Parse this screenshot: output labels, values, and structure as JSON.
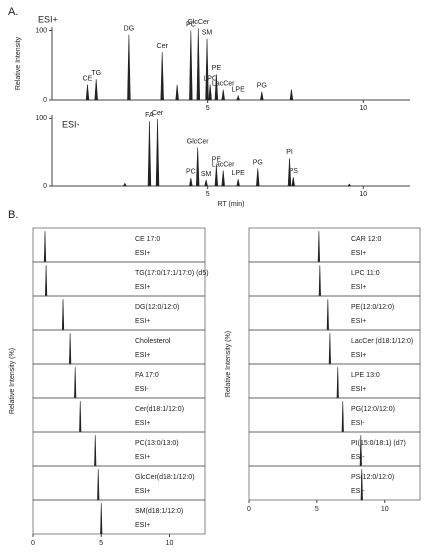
{
  "panel_labels": [
    "A.",
    "B."
  ],
  "chart_data": [
    {
      "type": "chromatogram",
      "title": "ESI+",
      "ylabel": "Relative Intensity",
      "x": [
        1.14,
        1.42,
        2.47,
        3.54,
        4.02,
        4.46,
        4.7,
        4.98,
        5.08,
        5.28,
        5.5,
        5.98,
        6.74,
        7.69
      ],
      "values": [
        22,
        30,
        94,
        69,
        22,
        100,
        103,
        88,
        22,
        37,
        15,
        6,
        12,
        15
      ],
      "peak_labels": [
        "CE",
        "TG",
        "DG",
        "Cer",
        null,
        "PC",
        "GlcCer",
        "SM",
        "LPC",
        "PE",
        "LacCer",
        "LPE",
        "PG",
        null
      ],
      "color": "#222222",
      "xlim": [
        0,
        11.5
      ],
      "xticks": [
        5,
        10
      ],
      "ylim": [
        0,
        105
      ],
      "yticks": [
        0,
        100
      ]
    },
    {
      "type": "chromatogram",
      "title": "ESI-",
      "xlabel": "RT (min)",
      "x": [
        2.34,
        3.13,
        3.39,
        4.46,
        4.68,
        4.95,
        5.28,
        5.5,
        5.98,
        6.61,
        7.63,
        7.75,
        9.55
      ],
      "values": [
        4,
        96,
        99,
        12,
        57,
        9,
        30,
        23,
        10,
        26,
        41,
        13,
        3
      ],
      "peak_labels": [
        null,
        "FA",
        "Cer",
        "PC",
        "GlcCer",
        "SM",
        "PE",
        "LacCer",
        "LPE",
        "PG",
        "PI",
        "PS",
        null
      ],
      "color": "#222222",
      "xlim": [
        0,
        11.5
      ],
      "xticks": [
        5,
        10
      ],
      "ylim": [
        0,
        105
      ],
      "yticks": [
        0,
        100
      ]
    },
    {
      "type": "standards",
      "ylabel": "Relative Intensity (%)",
      "categories": [
        "CE 17:0",
        "TG(17:0/17:1/17:0) (d5)",
        "DG(12:0/12:0)",
        "Cholesterol",
        "FA 17:0",
        "Cer(d18:1/12:0)",
        "PC(13:0/13:0)",
        "GlcCer(d18:1/12:0)",
        "SM(d18:1/12:0)"
      ],
      "modes": [
        "ESI+",
        "ESI+",
        "ESI+",
        "ESI+",
        "ESI-",
        "ESI+",
        "ESI+",
        "ESI+",
        "ESI+"
      ],
      "x": [
        0.88,
        0.96,
        2.2,
        2.72,
        3.09,
        3.46,
        4.56,
        4.78,
        5.0
      ],
      "values": [
        100,
        100,
        100,
        100,
        100,
        100,
        100,
        100,
        100
      ],
      "color": "#222222",
      "xlim": [
        0,
        12.6
      ],
      "xticks": [
        0,
        5,
        10
      ],
      "ylim": [
        0,
        110
      ]
    },
    {
      "type": "standards",
      "ylabel": "Relative Intensity (%)",
      "categories": [
        "CAR 12:0",
        "LPC 11:0",
        "PE(12:0/12:0)",
        "LacCer (d18:1/12:0)",
        "LPE 13:0",
        "PG(12:0/12:0)",
        "PI(15:0/18:1) (d7)",
        "PS(12:0/12:0)"
      ],
      "modes": [
        "ESI+",
        "ESI+",
        "ESI+",
        "ESI+",
        "ESI+",
        "ESI-",
        "ESI-",
        "ESI-"
      ],
      "x": [
        5.15,
        5.22,
        5.81,
        5.96,
        6.54,
        6.91,
        8.24,
        8.31
      ],
      "values": [
        100,
        100,
        100,
        100,
        100,
        100,
        100,
        100
      ],
      "color": "#222222",
      "xlim": [
        0,
        12.6
      ],
      "xticks": [
        0,
        5,
        10
      ],
      "ylim": [
        0,
        110
      ]
    }
  ]
}
